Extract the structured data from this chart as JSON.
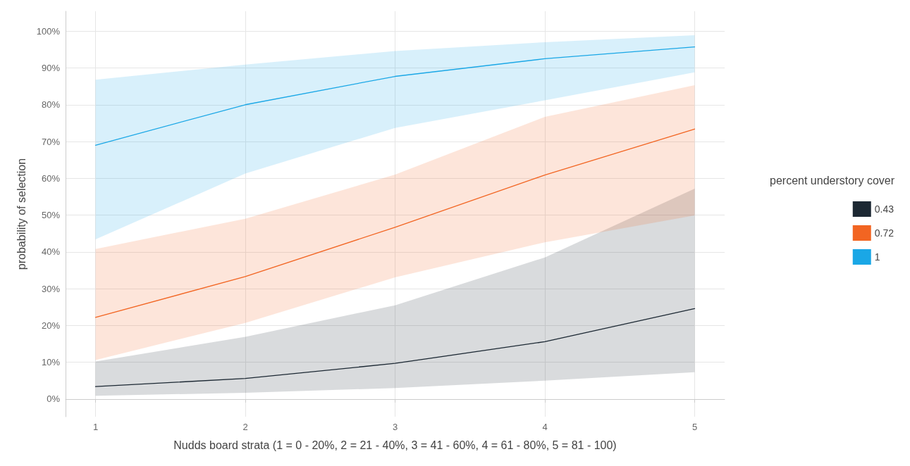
{
  "chart_data": {
    "type": "line",
    "xlabel": "Nudds board strata (1 = 0 - 20%, 2 = 21 - 40%, 3 = 41 - 60%, 4 = 61 - 80%, 5 = 81 - 100)",
    "ylabel": "probability of selection",
    "legend_title": "percent understory cover",
    "legend": "right",
    "grid": true,
    "marker": "none",
    "line_style": "solid",
    "x": [
      1,
      2,
      3,
      4,
      5
    ],
    "xlim": [
      0.8,
      5.2
    ],
    "xticks": [
      1,
      2,
      3,
      4,
      5
    ],
    "ylim": [
      -4.8,
      105.4
    ],
    "yticks": [
      {
        "value": 0,
        "label": "0%"
      },
      {
        "value": 10,
        "label": "10%"
      },
      {
        "value": 20,
        "label": "20%"
      },
      {
        "value": 30,
        "label": "30%"
      },
      {
        "value": 40,
        "label": "40%"
      },
      {
        "value": 50,
        "label": "50%"
      },
      {
        "value": 60,
        "label": "60%"
      },
      {
        "value": 70,
        "label": "70%"
      },
      {
        "value": 80,
        "label": "80%"
      },
      {
        "value": 90,
        "label": "90%"
      },
      {
        "value": 100,
        "label": "100%"
      }
    ],
    "series": [
      {
        "name": "0.43",
        "color": "#1c2833",
        "values": [
          3.4,
          5.6,
          9.7,
          15.6,
          24.6
        ],
        "lower": [
          0.9,
          1.7,
          3,
          5,
          7.3
        ],
        "upper": [
          10.2,
          16.9,
          25.5,
          38.5,
          57.2
        ]
      },
      {
        "name": "0.72",
        "color": "#f26522",
        "values": [
          22.2,
          33.3,
          46.7,
          60.9,
          73.4
        ],
        "lower": [
          10.6,
          20.7,
          33.1,
          42.6,
          49.9
        ],
        "upper": [
          40.8,
          49,
          61,
          76.7,
          85.3
        ]
      },
      {
        "name": "1",
        "color": "#1aa7e6",
        "values": [
          69,
          80,
          87.7,
          92.5,
          95.7
        ],
        "lower": [
          43.4,
          61.3,
          73.7,
          81.2,
          88.8
        ],
        "upper": [
          86.8,
          90.9,
          94.6,
          97,
          98.9
        ]
      }
    ]
  }
}
